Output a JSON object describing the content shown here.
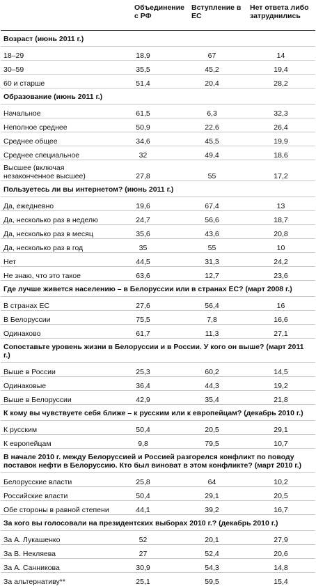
{
  "columns": [
    "",
    "Объединение с РФ",
    "Вступление в ЕС",
    "Нет ответа либо затруднились"
  ],
  "sections": [
    {
      "title": "Возраст (июнь 2011 г.)",
      "rows": [
        {
          "label": "18–29",
          "values": [
            "18,9",
            "67",
            "14"
          ]
        },
        {
          "label": "30–59",
          "values": [
            "35,5",
            "45,2",
            "19,4"
          ]
        },
        {
          "label": "60 и старше",
          "values": [
            "51,4",
            "20,4",
            "28,2"
          ]
        }
      ]
    },
    {
      "title": "Образование (июнь 2011 г.)",
      "rows": [
        {
          "label": "Начальное",
          "values": [
            "61,5",
            "6,3",
            "32,3"
          ]
        },
        {
          "label": "Неполное среднее",
          "values": [
            "50,9",
            "22,6",
            "26,4"
          ]
        },
        {
          "label": "Среднее общее",
          "values": [
            "34,6",
            "45,5",
            "19,9"
          ]
        },
        {
          "label": "Среднее специальное",
          "values": [
            "32",
            "49,4",
            "18,6"
          ]
        },
        {
          "label": "Высшее (включая незаконченное высшее)",
          "values": [
            "27,8",
            "55",
            "17,2"
          ],
          "tall": true
        }
      ]
    },
    {
      "title": "Пользуетесь ли вы интернетом? (июнь 2011 г.)",
      "rows": [
        {
          "label": "Да, ежедневно",
          "values": [
            "19,6",
            "67,4",
            "13"
          ]
        },
        {
          "label": "Да, несколько раз в неделю",
          "values": [
            "24,7",
            "56,6",
            "18,7"
          ]
        },
        {
          "label": "Да, несколько раз в месяц",
          "values": [
            "35,6",
            "43,6",
            "20,8"
          ]
        },
        {
          "label": "Да, несколько раз в год",
          "values": [
            "35",
            "55",
            "10"
          ]
        },
        {
          "label": "Нет",
          "values": [
            "44,5",
            "31,3",
            "24,2"
          ]
        },
        {
          "label": "Не знаю, что это такое",
          "values": [
            "63,6",
            "12,7",
            "23,6"
          ]
        }
      ]
    },
    {
      "title": "Где лучше живется населению – в Белоруссии или в странах ЕС? (март 2008 г.)",
      "rows": [
        {
          "label": "В странах ЕС",
          "values": [
            "27,6",
            "56,4",
            "16"
          ]
        },
        {
          "label": "В Белоруссии",
          "values": [
            "75,5",
            "7,8",
            "16,6"
          ]
        },
        {
          "label": "Одинаково",
          "values": [
            "61,7",
            "11,3",
            "27,1"
          ]
        }
      ]
    },
    {
      "title": "Сопоставьте уровень жизни в Белоруссии и в России. У кого он выше? (март 2011 г.)",
      "rows": [
        {
          "label": "Выше в России",
          "values": [
            "25,3",
            "60,2",
            "14,5"
          ]
        },
        {
          "label": "Одинаковые",
          "values": [
            "36,4",
            "44,3",
            "19,2"
          ]
        },
        {
          "label": "Выше в Белоруссии",
          "values": [
            "42,9",
            "35,4",
            "21,8"
          ]
        }
      ]
    },
    {
      "title": "К кому вы чувствуете себя ближе – к русским или к европейцам? (декабрь 2010 г.)",
      "rows": [
        {
          "label": "К русским",
          "values": [
            "50,4",
            "20,5",
            "29,1"
          ]
        },
        {
          "label": "К европейцам",
          "values": [
            "9,8",
            "79,5",
            "10,7"
          ]
        }
      ]
    },
    {
      "title": "В начале 2010 г. между Белоруссией и Россией разгорелся конфликт по поводу поставок нефти в Белоруссию. Кто был виноват в этом конфликте? (март 2010 г.)",
      "rows": [
        {
          "label": "Белорусские власти",
          "values": [
            "25,8",
            "64",
            "10,2"
          ]
        },
        {
          "label": "Российские власти",
          "values": [
            "50,4",
            "29,1",
            "20,5"
          ]
        },
        {
          "label": "Обе стороны в равной степени",
          "values": [
            "44,1",
            "39,2",
            "16,7"
          ]
        }
      ]
    },
    {
      "title": "За кого вы голосовали на президентских выборах 2010 г.? (декабрь 2010 г.)",
      "rows": [
        {
          "label": "За А. Лукашенко",
          "values": [
            "52",
            "20,1",
            "27,9"
          ]
        },
        {
          "label": "За В. Некляева",
          "values": [
            "27",
            "52,4",
            "20,6"
          ]
        },
        {
          "label": "За А. Санникова",
          "values": [
            "30,9",
            "54,3",
            "14,8"
          ]
        },
        {
          "label": "За альтернативу**",
          "values": [
            "25,1",
            "59,5",
            "15,4"
          ]
        }
      ]
    }
  ]
}
